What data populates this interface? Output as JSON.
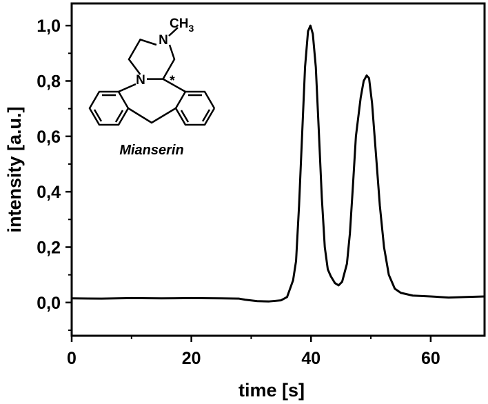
{
  "chart_data": {
    "type": "line",
    "x_label": "time [s]",
    "y_label": "intensity [a.u.]",
    "x": [
      0,
      5,
      10,
      15,
      20,
      25,
      28,
      29,
      31,
      33,
      35,
      36,
      37,
      37.5,
      38,
      38.5,
      39,
      39.5,
      39.9,
      40.3,
      40.8,
      41.3,
      41.8,
      42.3,
      42.8,
      43.3,
      44,
      44.6,
      45.2,
      46,
      46.5,
      47,
      47.5,
      48.3,
      48.8,
      49.3,
      49.7,
      50.2,
      50.8,
      51.5,
      52.2,
      53,
      54,
      55,
      57,
      60,
      63,
      66,
      69
    ],
    "values": [
      0.015,
      0.014,
      0.016,
      0.015,
      0.016,
      0.015,
      0.014,
      0.01,
      0.005,
      0.004,
      0.008,
      0.02,
      0.08,
      0.15,
      0.35,
      0.6,
      0.85,
      0.98,
      1.0,
      0.97,
      0.85,
      0.62,
      0.38,
      0.2,
      0.12,
      0.095,
      0.07,
      0.062,
      0.075,
      0.14,
      0.25,
      0.42,
      0.6,
      0.74,
      0.8,
      0.82,
      0.81,
      0.72,
      0.55,
      0.35,
      0.2,
      0.1,
      0.05,
      0.035,
      0.025,
      0.022,
      0.018,
      0.02,
      0.022
    ],
    "color": "#000000",
    "xlim": [
      0,
      69
    ],
    "ylim": [
      -0.12,
      1.08
    ],
    "xticks": [
      0,
      20,
      40,
      60
    ],
    "yticks": [
      {
        "value": 0.0,
        "label": "0,0"
      },
      {
        "value": 0.2,
        "label": "0,2"
      },
      {
        "value": 0.4,
        "label": "0,4"
      },
      {
        "value": 0.6,
        "label": "0,6"
      },
      {
        "value": 0.8,
        "label": "0,8"
      },
      {
        "value": 1.0,
        "label": "1,0"
      }
    ],
    "xminorticks": [
      10,
      30,
      50
    ],
    "yminorticks": [
      -0.1,
      0.1,
      0.3,
      0.5,
      0.7,
      0.9
    ],
    "grid": false,
    "annotation": "Mianserin",
    "structure_labels": [
      "N",
      "N",
      "CH",
      "3",
      "*"
    ]
  }
}
